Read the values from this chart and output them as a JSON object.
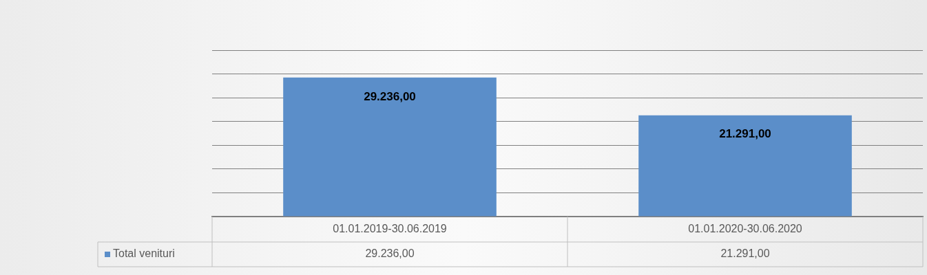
{
  "chart_data": {
    "type": "bar",
    "categories": [
      "01.01.2019-30.06.2019",
      "01.01.2020-30.06.2020"
    ],
    "series": [
      {
        "name": "Total venituri",
        "color": "#5b8ec9",
        "values": [
          29236,
          21291
        ],
        "value_labels": [
          "29.236,00",
          "21.291,00"
        ]
      }
    ],
    "ylim": [
      0,
      35000
    ],
    "yticks": [
      {
        "value": 0,
        "label": null
      },
      {
        "value": 5000,
        "label": null
      },
      {
        "value": 10000,
        "label": null
      },
      {
        "value": 15000,
        "label": null
      },
      {
        "value": 20000,
        "label": null
      },
      {
        "value": 25000,
        "label": null
      },
      {
        "value": 30000,
        "label": null
      },
      {
        "value": 35000,
        "label": null
      }
    ],
    "grid": "y",
    "tick_labels": "x",
    "legend": "bottom"
  }
}
